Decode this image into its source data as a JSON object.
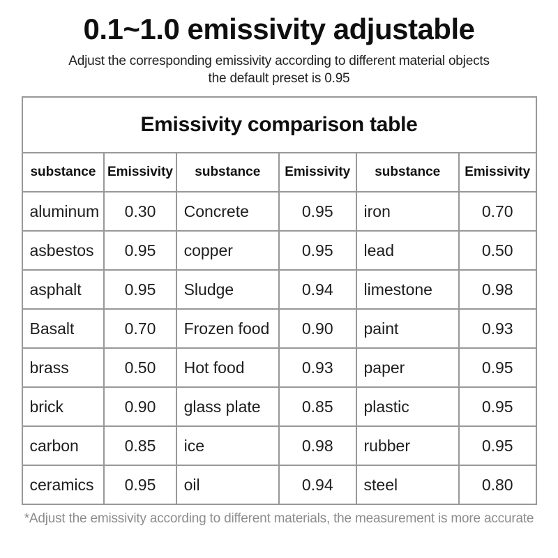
{
  "header": {
    "title": "0.1~1.0 emissivity adjustable",
    "subtitle_line1": "Adjust the corresponding emissivity according to different material objects",
    "subtitle_line2": "the default preset is 0.95"
  },
  "table": {
    "title": "Emissivity comparison table",
    "headers": [
      "substance",
      "Emissivity",
      "substance",
      "Emissivity",
      "substance",
      "Emissivity"
    ],
    "rows": [
      [
        "aluminum",
        "0.30",
        "Concrete",
        "0.95",
        "iron",
        "0.70"
      ],
      [
        "asbestos",
        "0.95",
        "copper",
        "0.95",
        "lead",
        "0.50"
      ],
      [
        "asphalt",
        "0.95",
        "Sludge",
        "0.94",
        "limestone",
        "0.98"
      ],
      [
        "Basalt",
        "0.70",
        "Frozen food",
        "0.90",
        "paint",
        "0.93"
      ],
      [
        "brass",
        "0.50",
        "Hot food",
        "0.93",
        "paper",
        "0.95"
      ],
      [
        "brick",
        "0.90",
        "glass plate",
        "0.85",
        "plastic",
        "0.95"
      ],
      [
        "carbon",
        "0.85",
        "ice",
        "0.98",
        "rubber",
        "0.95"
      ],
      [
        "ceramics",
        "0.95",
        "oil",
        "0.94",
        "steel",
        "0.80"
      ]
    ],
    "column_widths_percent": [
      16,
      14,
      20,
      15,
      20,
      15
    ]
  },
  "footer": {
    "note": "*Adjust the emissivity according to different materials, the measurement is more accurate"
  },
  "colors": {
    "background": "#ffffff",
    "text": "#1d1d1d",
    "title_text": "#0f0f0f",
    "border": "#989898",
    "footer_text": "#8c8c8c"
  }
}
